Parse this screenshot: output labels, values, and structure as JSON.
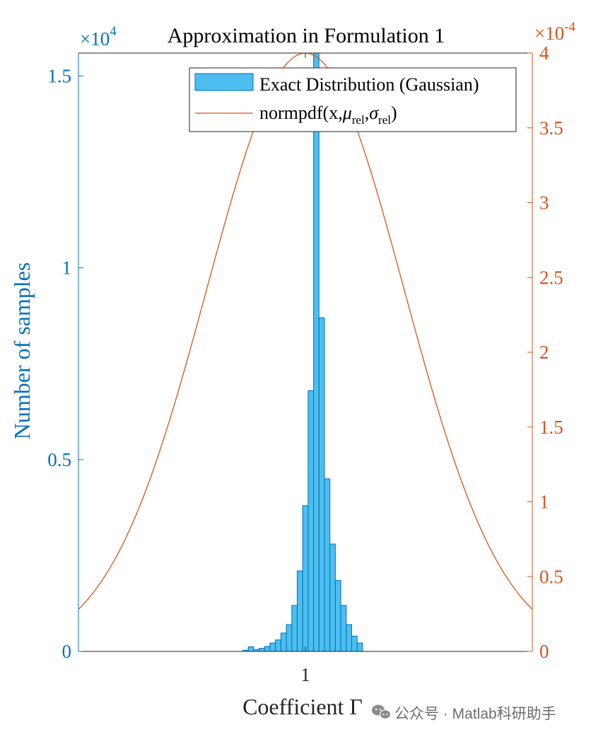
{
  "chart_data": {
    "type": "bar",
    "title": "Approximation in Formulation 1",
    "xlabel": "Coefficient Γ",
    "ylabel_left": "Number of samples",
    "left_axis": {
      "color": "#0072BD",
      "ylim": [
        0,
        15600
      ],
      "exponent_label": "×10",
      "exponent_power": "4",
      "ticks": [
        {
          "value": 0,
          "label": "0"
        },
        {
          "value": 5000,
          "label": "0.5"
        },
        {
          "value": 10000,
          "label": "1"
        },
        {
          "value": 15000,
          "label": "1.5"
        }
      ]
    },
    "right_axis": {
      "color": "#D95319",
      "ylim": [
        0,
        0.0004
      ],
      "exponent_label": "×10",
      "exponent_power": "-4",
      "ticks": [
        {
          "value": 0,
          "label": "0"
        },
        {
          "value": 5e-05,
          "label": "0.5"
        },
        {
          "value": 0.0001,
          "label": "1"
        },
        {
          "value": 0.00015,
          "label": "1.5"
        },
        {
          "value": 0.0002,
          "label": "2"
        },
        {
          "value": 0.00025,
          "label": "2.5"
        },
        {
          "value": 0.0003,
          "label": "3"
        },
        {
          "value": 0.00035,
          "label": "3.5"
        },
        {
          "value": 0.0004,
          "label": "4"
        }
      ]
    },
    "x_axis": {
      "xlim": [
        0.9,
        1.1
      ],
      "ticks": [
        {
          "value": 1,
          "label": "1"
        }
      ]
    },
    "histogram": {
      "name": "Exact Distribution (Gaussian)",
      "face_color": "#4DBEEE",
      "edge_color": "#0072BD",
      "bin_width": 0.0024,
      "bin_centers": [
        0.9736,
        0.976,
        0.9784,
        0.9808,
        0.9832,
        0.9856,
        0.988,
        0.9904,
        0.9928,
        0.9952,
        0.9976,
        1.0,
        1.0024,
        1.0048,
        1.0072,
        1.0096,
        1.012,
        1.0144,
        1.0168,
        1.0192,
        1.0216,
        1.024
      ],
      "counts": [
        30,
        120,
        50,
        80,
        130,
        220,
        300,
        480,
        700,
        1200,
        2100,
        3800,
        6800,
        15600,
        8700,
        4500,
        2800,
        1850,
        1200,
        700,
        400,
        220
      ]
    },
    "curve": {
      "name": "normpdf(x,μrel,σrel)",
      "legend_base": "normpdf(x,",
      "legend_mu": "μ",
      "legend_sigma": "σ",
      "legend_sub": "rel",
      "color": "#D95319",
      "mu": 1.0,
      "sigma": 0.0434,
      "peak": 0.0004
    },
    "legend_position": "top-right"
  },
  "watermark": {
    "text": "公众号 · Matlab科研助手"
  }
}
